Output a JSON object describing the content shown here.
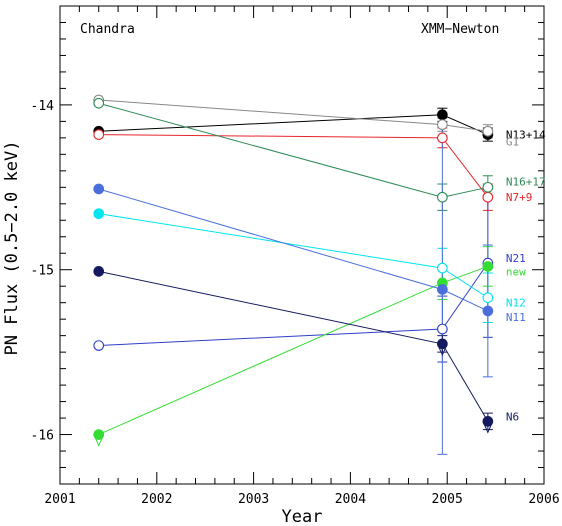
{
  "chart_data": {
    "type": "scatter",
    "xlabel": "Year",
    "ylabel": "PN Flux (0.5−2.0 keV)",
    "xlim": [
      2001,
      2006
    ],
    "ylim": [
      -16.3,
      -13.4
    ],
    "xticks": [
      2001,
      2002,
      2003,
      2004,
      2005,
      2006
    ],
    "yticks": [
      -14,
      -15,
      -16
    ],
    "annotations": [
      {
        "id": "chandra",
        "text": "Chandra"
      },
      {
        "id": "xmm",
        "text": "XMM−Newton"
      }
    ],
    "series": [
      {
        "name": "N13+14",
        "color": "#000000",
        "filled": true,
        "points": [
          {
            "x": 2001.4,
            "y": -14.16,
            "filled": true
          },
          {
            "x": 2004.95,
            "y": -14.06,
            "filled": true,
            "err": 0.04
          },
          {
            "x": 2005.42,
            "y": -14.18,
            "filled": true,
            "err": 0.04
          }
        ]
      },
      {
        "name": "G1",
        "color": "#888888",
        "filled": false,
        "points": [
          {
            "x": 2001.4,
            "y": -13.97,
            "filled": false
          },
          {
            "x": 2004.95,
            "y": -14.12,
            "filled": false,
            "err": 0.04
          },
          {
            "x": 2005.42,
            "y": -14.16,
            "filled": false,
            "err": 0.04
          }
        ]
      },
      {
        "name": "N7+9",
        "color": "#e8252b",
        "filled": false,
        "points": [
          {
            "x": 2001.4,
            "y": -14.18,
            "filled": false
          },
          {
            "x": 2004.95,
            "y": -14.2,
            "filled": false,
            "err": 0.06
          },
          {
            "x": 2005.42,
            "y": -14.56,
            "filled": false,
            "err": 0.08
          }
        ]
      },
      {
        "name": "N16+17",
        "color": "#2e8b57",
        "filled": false,
        "points": [
          {
            "x": 2001.4,
            "y": -13.99,
            "filled": false
          },
          {
            "x": 2004.95,
            "y": -14.56,
            "filled": false,
            "err": 0.08
          },
          {
            "x": 2005.42,
            "y": -14.5,
            "filled": false,
            "err": 0.07
          }
        ]
      },
      {
        "name": "N21",
        "color": "#2f3fc8",
        "filled": false,
        "points": [
          {
            "x": 2001.4,
            "y": -15.46,
            "filled": false
          },
          {
            "x": 2004.95,
            "y": -15.36,
            "filled": false,
            "err": 0.2
          },
          {
            "x": 2005.42,
            "y": -14.96,
            "filled": false,
            "err": 0.45
          }
        ]
      },
      {
        "name": "new",
        "color": "#33dd33",
        "filled": true,
        "points": [
          {
            "x": 2001.4,
            "y": -16.0,
            "filled": true,
            "limit": true
          },
          {
            "x": 2004.95,
            "y": -15.08,
            "filled": true,
            "err": 0.1
          },
          {
            "x": 2005.42,
            "y": -14.98,
            "filled": true,
            "err": 0.12
          }
        ]
      },
      {
        "name": "N12",
        "color": "#00e5ee",
        "filled": true,
        "points": [
          {
            "x": 2001.4,
            "y": -14.66,
            "filled": true
          },
          {
            "x": 2004.95,
            "y": -14.99,
            "filled": false,
            "err": 0.12
          },
          {
            "x": 2005.42,
            "y": -15.17,
            "filled": false,
            "err": 0.15
          }
        ]
      },
      {
        "name": "N11",
        "color": "#4a6fdc",
        "filled": true,
        "points": [
          {
            "x": 2001.4,
            "y": -14.51,
            "filled": true
          },
          {
            "x": 2004.95,
            "y": -15.12,
            "filled": true,
            "err": 1.0
          },
          {
            "x": 2005.42,
            "y": -15.25,
            "filled": true,
            "err": 0.4
          }
        ]
      },
      {
        "name": "N6",
        "color": "#141a5e",
        "filled": true,
        "points": [
          {
            "x": 2001.4,
            "y": -15.01,
            "filled": true
          },
          {
            "x": 2004.95,
            "y": -15.45,
            "filled": true,
            "err": 0.05,
            "limit": true
          },
          {
            "x": 2005.42,
            "y": -15.92,
            "filled": true,
            "err": 0.05,
            "limit": true
          }
        ]
      }
    ],
    "series_labels": [
      {
        "series": "N13+14",
        "text": "N13+14",
        "color": "#000000"
      },
      {
        "series": "G1",
        "text": "G1",
        "color": "#888888"
      },
      {
        "series": "N16+17",
        "text": "N16+17",
        "color": "#2e8b57"
      },
      {
        "series": "N7+9",
        "text": "N7+9",
        "color": "#e8252b"
      },
      {
        "series": "N21",
        "text": "N21",
        "color": "#2f3fc8"
      },
      {
        "series": "new",
        "text": "new",
        "color": "#33dd33"
      },
      {
        "series": "N12",
        "text": "N12",
        "color": "#00e5ee"
      },
      {
        "series": "N11",
        "text": "N11",
        "color": "#4a6fdc"
      },
      {
        "series": "N6",
        "text": "N6",
        "color": "#141a5e"
      }
    ]
  }
}
